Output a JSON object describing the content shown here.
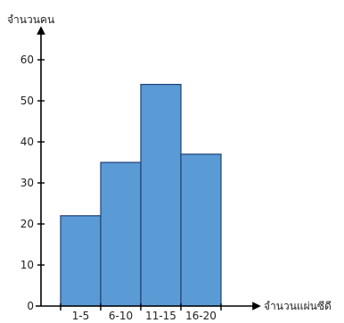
{
  "chart_data": {
    "type": "bar",
    "title": "",
    "ylabel": "จำนวนคน",
    "xlabel": "จำนวนแผ่นซีดี",
    "categories": [
      "1-5",
      "6-10",
      "11-15",
      "16-20"
    ],
    "values": [
      22,
      35,
      54,
      37
    ],
    "ylim": [
      0,
      60
    ],
    "yticks": [
      0,
      10,
      20,
      30,
      40,
      50,
      60
    ],
    "bar_color": "#5b9bd5",
    "bar_edge_color": "#1f3f78",
    "grid": false,
    "legend": "none"
  }
}
